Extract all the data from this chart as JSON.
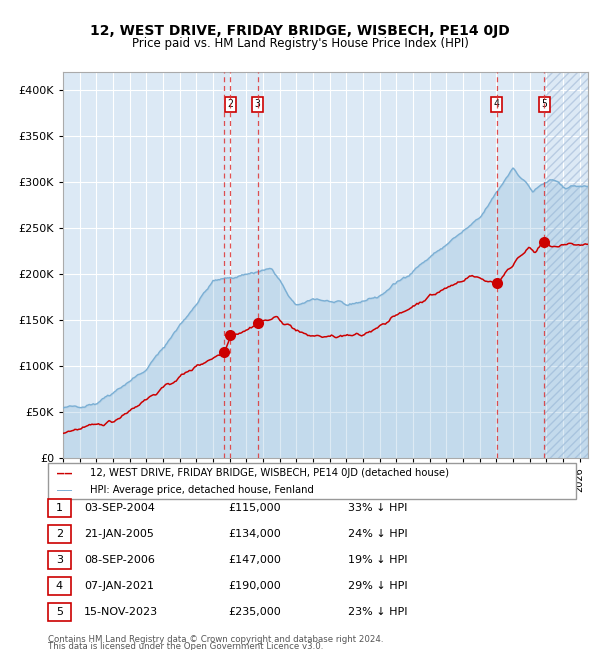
{
  "title": "12, WEST DRIVE, FRIDAY BRIDGE, WISBECH, PE14 0JD",
  "subtitle": "Price paid vs. HM Land Registry's House Price Index (HPI)",
  "legend_line1": "12, WEST DRIVE, FRIDAY BRIDGE, WISBECH, PE14 0JD (detached house)",
  "legend_line2": "HPI: Average price, detached house, Fenland",
  "footer1": "Contains HM Land Registry data © Crown copyright and database right 2024.",
  "footer2": "This data is licensed under the Open Government Licence v3.0.",
  "sales": [
    {
      "label": "1",
      "date": "03-SEP-2004",
      "price": 115000,
      "pct": "33% ↓ HPI",
      "year": 2004.67
    },
    {
      "label": "2",
      "date": "21-JAN-2005",
      "price": 134000,
      "pct": "24% ↓ HPI",
      "year": 2005.05
    },
    {
      "label": "3",
      "date": "08-SEP-2006",
      "price": 147000,
      "pct": "19% ↓ HPI",
      "year": 2006.67
    },
    {
      "label": "4",
      "date": "07-JAN-2021",
      "price": 190000,
      "pct": "29% ↓ HPI",
      "year": 2021.02
    },
    {
      "label": "5",
      "date": "15-NOV-2023",
      "price": 235000,
      "pct": "23% ↓ HPI",
      "year": 2023.87
    }
  ],
  "ylim": [
    0,
    420000
  ],
  "xlim_start": 1995.0,
  "xlim_end": 2026.5,
  "bg_color": "#dce9f5",
  "line_color_red": "#cc0000",
  "line_color_blue": "#7bafd4",
  "marker_color": "#cc0000",
  "dashed_color": "#dd3333",
  "label_box_color": "#cc0000",
  "grid_color": "#ffffff"
}
